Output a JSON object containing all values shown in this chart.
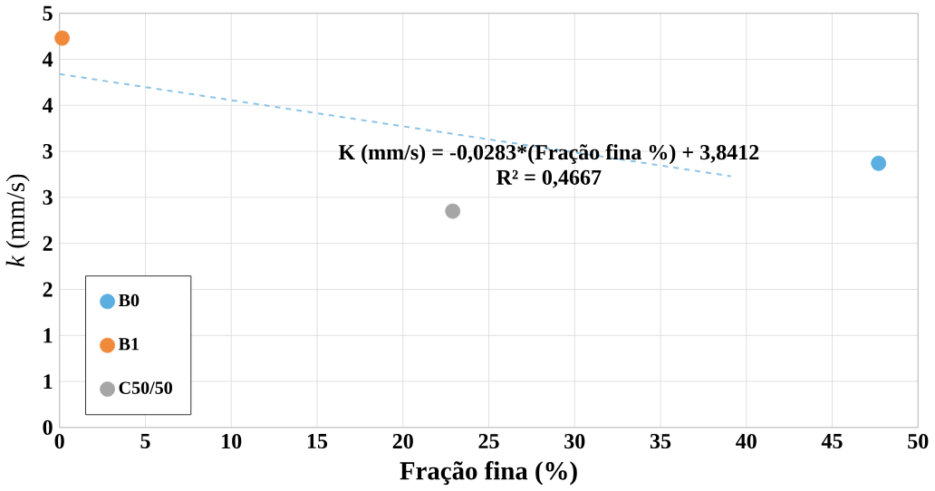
{
  "chart_data": {
    "type": "scatter",
    "xlabel": "Fração fina (%)",
    "ylabel": "*k* (mm/s)",
    "xlim": [
      0,
      50
    ],
    "xticks": [
      0,
      5,
      10,
      15,
      20,
      25,
      30,
      35,
      40,
      45,
      50
    ],
    "ylim": [
      0,
      4.5
    ],
    "yticks": [
      0,
      {
        "value": 0.5,
        "label": "1"
      },
      1,
      {
        "value": 1.5,
        "label": "2"
      },
      2,
      {
        "value": 2.5,
        "label": "3"
      },
      3,
      {
        "value": 3.5,
        "label": "4"
      },
      4,
      {
        "value": 4.5,
        "label": "5"
      }
    ],
    "grid": true,
    "legend": "bottom left",
    "marker": "circle",
    "series": [
      {
        "name": "B0",
        "color": "#5aaee0",
        "x": [
          47.7
        ],
        "values": [
          2.87
        ]
      },
      {
        "name": "B1",
        "color": "#f08a3a",
        "x": [
          0.15
        ],
        "values": [
          4.23
        ]
      },
      {
        "name": "C50/50",
        "color": "#a6a6a6",
        "x": [
          22.9
        ],
        "values": [
          2.35
        ]
      },
      {
        "type": "line",
        "color": "#8cc4e8",
        "line_style": "dashed",
        "marker": "none",
        "x": [
          0,
          39.1
        ],
        "values": [
          3.84,
          2.73
        ]
      }
    ],
    "annotations": [
      "K (mm/s) = -0,0283*(Fração fina %) + 3,8412",
      "R² = 0,4667"
    ]
  }
}
